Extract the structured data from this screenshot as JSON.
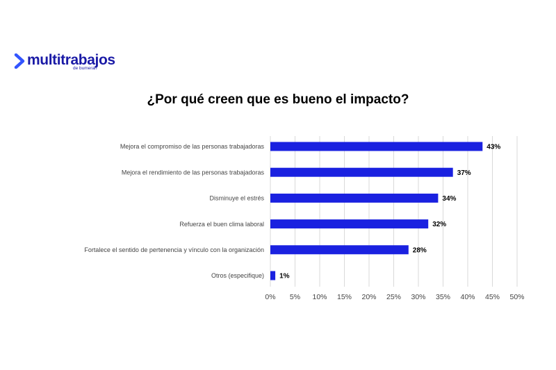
{
  "logo": {
    "name": "multitrabajos",
    "tagline": "de bumeran",
    "color": "#1a1aa6",
    "accent_color": "#3355ff"
  },
  "chart_data": {
    "type": "bar",
    "orientation": "horizontal",
    "title": "¿Por qué creen que es bueno el impacto?",
    "categories": [
      "Mejora el compromiso de las personas trabajadoras",
      "Mejora el rendimiento de las personas trabajadoras",
      "Disminuye el estrés",
      "Refuerza el buen clima laboral",
      "Fortalece el sentido de pertenencia y vínculo con la organización",
      "Otros (especifique)"
    ],
    "values": [
      43,
      37,
      34,
      32,
      28,
      1
    ],
    "value_labels": [
      "43%",
      "37%",
      "34%",
      "32%",
      "28%",
      "1%"
    ],
    "xlim": [
      0,
      50
    ],
    "xticks": [
      0,
      5,
      10,
      15,
      20,
      25,
      30,
      35,
      40,
      45,
      50
    ],
    "xtick_labels": [
      "0%",
      "5%",
      "10%",
      "15%",
      "20%",
      "25%",
      "30%",
      "35%",
      "40%",
      "45%",
      "50%"
    ],
    "xlabel": "",
    "ylabel": "",
    "grid": "vertical",
    "legend": "none",
    "bar_color": "#1a21e0",
    "grid_color": "#d9d9d9"
  }
}
